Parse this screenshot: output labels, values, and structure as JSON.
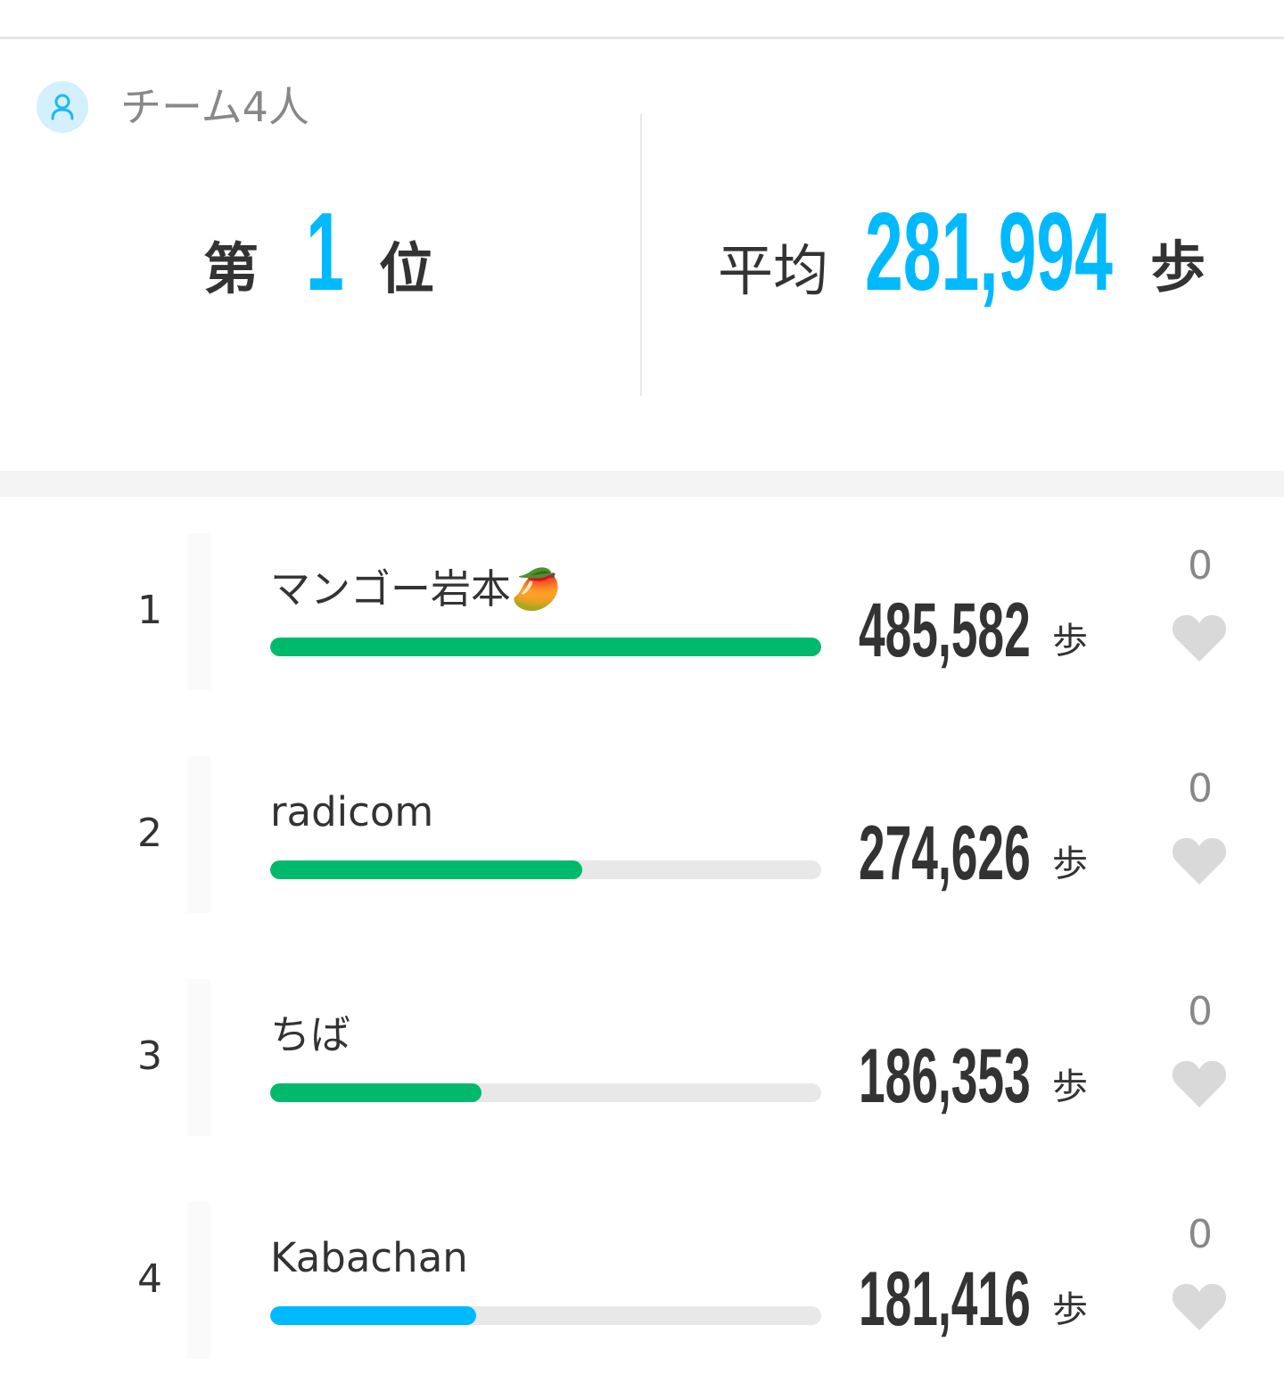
{
  "team": {
    "icon": "person-icon",
    "label": "チーム4人"
  },
  "rank": {
    "prefix": "第",
    "value": "1",
    "suffix": "位"
  },
  "average": {
    "label": "平均",
    "value": "281,994",
    "unit": "歩"
  },
  "colors": {
    "accent": "#00b9ff",
    "bar_green": "#00b96b",
    "bar_blue": "#00b9ff",
    "track": "#e8e8e8",
    "heart": "#d9d9d9"
  },
  "members": [
    {
      "rank": "1",
      "name": "マンゴー岩本🥭",
      "steps": "485,582",
      "unit": "歩",
      "likes": "0",
      "progress": 1.0,
      "bar_color": "#00b96b"
    },
    {
      "rank": "2",
      "name": "radicom",
      "steps": "274,626",
      "unit": "歩",
      "likes": "0",
      "progress": 0.566,
      "bar_color": "#00b96b"
    },
    {
      "rank": "3",
      "name": "ちば",
      "steps": "186,353",
      "unit": "歩",
      "likes": "0",
      "progress": 0.384,
      "bar_color": "#00b96b"
    },
    {
      "rank": "4",
      "name": "Kabachan",
      "steps": "181,416",
      "unit": "歩",
      "likes": "0",
      "progress": 0.374,
      "bar_color": "#00b9ff"
    }
  ]
}
